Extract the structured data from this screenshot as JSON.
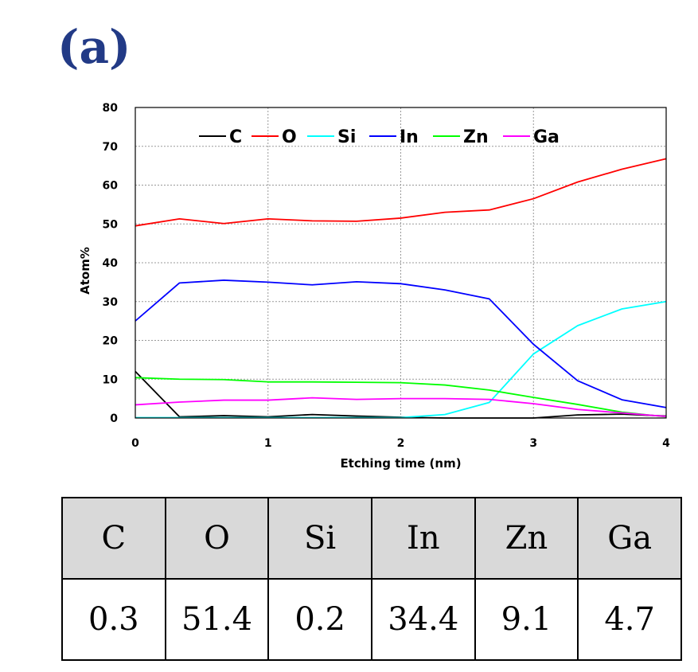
{
  "panel_label": "(a)",
  "chart_data": {
    "type": "line",
    "xlabel": "Etching time (nm)",
    "ylabel": "Atom%",
    "xlim": [
      0,
      4
    ],
    "ylim": [
      0,
      80
    ],
    "x_ticks": [
      0,
      1,
      2,
      3,
      4
    ],
    "y_ticks": [
      0,
      10,
      20,
      30,
      40,
      50,
      60,
      70,
      80
    ],
    "grid": true,
    "legend_position": "top",
    "x": [
      0,
      0.333,
      0.667,
      1,
      1.333,
      1.667,
      2,
      2.333,
      2.667,
      3,
      3.333,
      3.667,
      4
    ],
    "series": [
      {
        "name": "C",
        "color": "#000000",
        "values": [
          12,
          0.3,
          0.6,
          0.3,
          0.9,
          0.5,
          0.2,
          0,
          0,
          0,
          0.8,
          1.0,
          0.5
        ]
      },
      {
        "name": "O",
        "color": "#ff0000",
        "values": [
          49.5,
          51.3,
          50.1,
          51.3,
          50.8,
          50.7,
          51.5,
          53.0,
          53.6,
          56.5,
          60.8,
          64.1,
          66.8
        ]
      },
      {
        "name": "Si",
        "color": "#00ffff",
        "values": [
          0.1,
          0.1,
          0.1,
          0.1,
          0.1,
          0.1,
          0.1,
          0.9,
          4.0,
          16.5,
          23.8,
          28.1,
          30.0
        ]
      },
      {
        "name": "In",
        "color": "#0000ff",
        "values": [
          25.0,
          34.8,
          35.5,
          35.0,
          34.3,
          35.1,
          34.6,
          33.0,
          30.7,
          19.0,
          9.6,
          4.7,
          2.7
        ]
      },
      {
        "name": "Zn",
        "color": "#00ff00",
        "values": [
          10.4,
          10.0,
          9.9,
          9.3,
          9.3,
          9.2,
          9.1,
          8.5,
          7.2,
          5.3,
          3.5,
          1.5,
          0.3
        ]
      },
      {
        "name": "Ga",
        "color": "#ff00ff",
        "values": [
          3.4,
          4.1,
          4.6,
          4.6,
          5.2,
          4.8,
          5.0,
          5.0,
          4.8,
          3.7,
          2.2,
          1.3,
          0.4
        ]
      }
    ]
  },
  "table": {
    "headers": [
      "C",
      "O",
      "Si",
      "In",
      "Zn",
      "Ga"
    ],
    "values": [
      "0.3",
      "51.4",
      "0.2",
      "34.4",
      "9.1",
      "4.7"
    ]
  }
}
